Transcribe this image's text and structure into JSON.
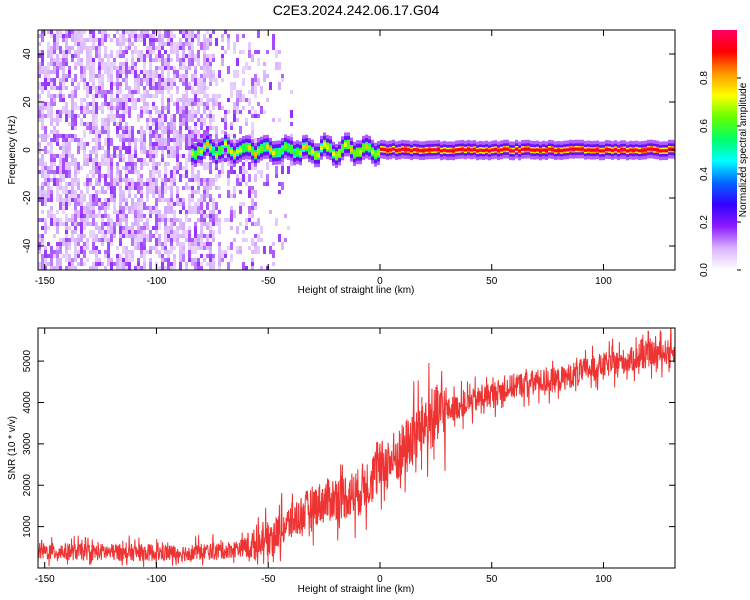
{
  "title": "C2E3.2024.242.06.17.G04",
  "chart_data": [
    {
      "type": "heatmap",
      "xlabel": "Height of straight line (km)",
      "ylabel": "Frequency (Hz)",
      "xlim": [
        -153,
        132
      ],
      "ylim": [
        -50,
        50
      ],
      "xticks": [
        -150,
        -100,
        -50,
        0,
        50,
        100
      ],
      "yticks": [
        -40,
        -20,
        0,
        20,
        40
      ],
      "colorbar": {
        "label": "Normalized spectral amplitude",
        "range": [
          0,
          1
        ],
        "ticks": [
          "0.0",
          "0.2",
          "0.4",
          "0.6",
          "0.8"
        ],
        "colormap": [
          "#ffffff",
          "#d9b3ff",
          "#8c1aff",
          "#3300ff",
          "#0066ff",
          "#00ffff",
          "#00ff66",
          "#66ff00",
          "#ffff00",
          "#ff9900",
          "#ff0000",
          "#ff0066"
        ]
      },
      "description_values": {
        "noise_region_x": [
          -153,
          -40
        ],
        "signal_line_y": 0,
        "signal_start_x": -85
      }
    },
    {
      "type": "line",
      "xlabel": "Height of straight line (km)",
      "ylabel": "SNR (10 * v/v)",
      "xlim": [
        -153,
        132
      ],
      "ylim": [
        0,
        5800
      ],
      "xticks": [
        -150,
        -100,
        -50,
        0,
        50,
        100
      ],
      "yticks": [
        1000,
        2000,
        3000,
        4000,
        5000
      ],
      "line_color": "#ee3333",
      "x_points": [
        -153,
        -120,
        -90,
        -70,
        -60,
        -50,
        -40,
        -30,
        -20,
        -10,
        0,
        10,
        20,
        30,
        40,
        50,
        60,
        70,
        80,
        90,
        100,
        110,
        120,
        132
      ],
      "y_points": [
        400,
        380,
        360,
        420,
        500,
        700,
        1100,
        1500,
        1700,
        1800,
        2400,
        2800,
        3500,
        3800,
        4000,
        4200,
        4400,
        4500,
        4550,
        4750,
        4900,
        5000,
        5150,
        5250
      ]
    }
  ]
}
